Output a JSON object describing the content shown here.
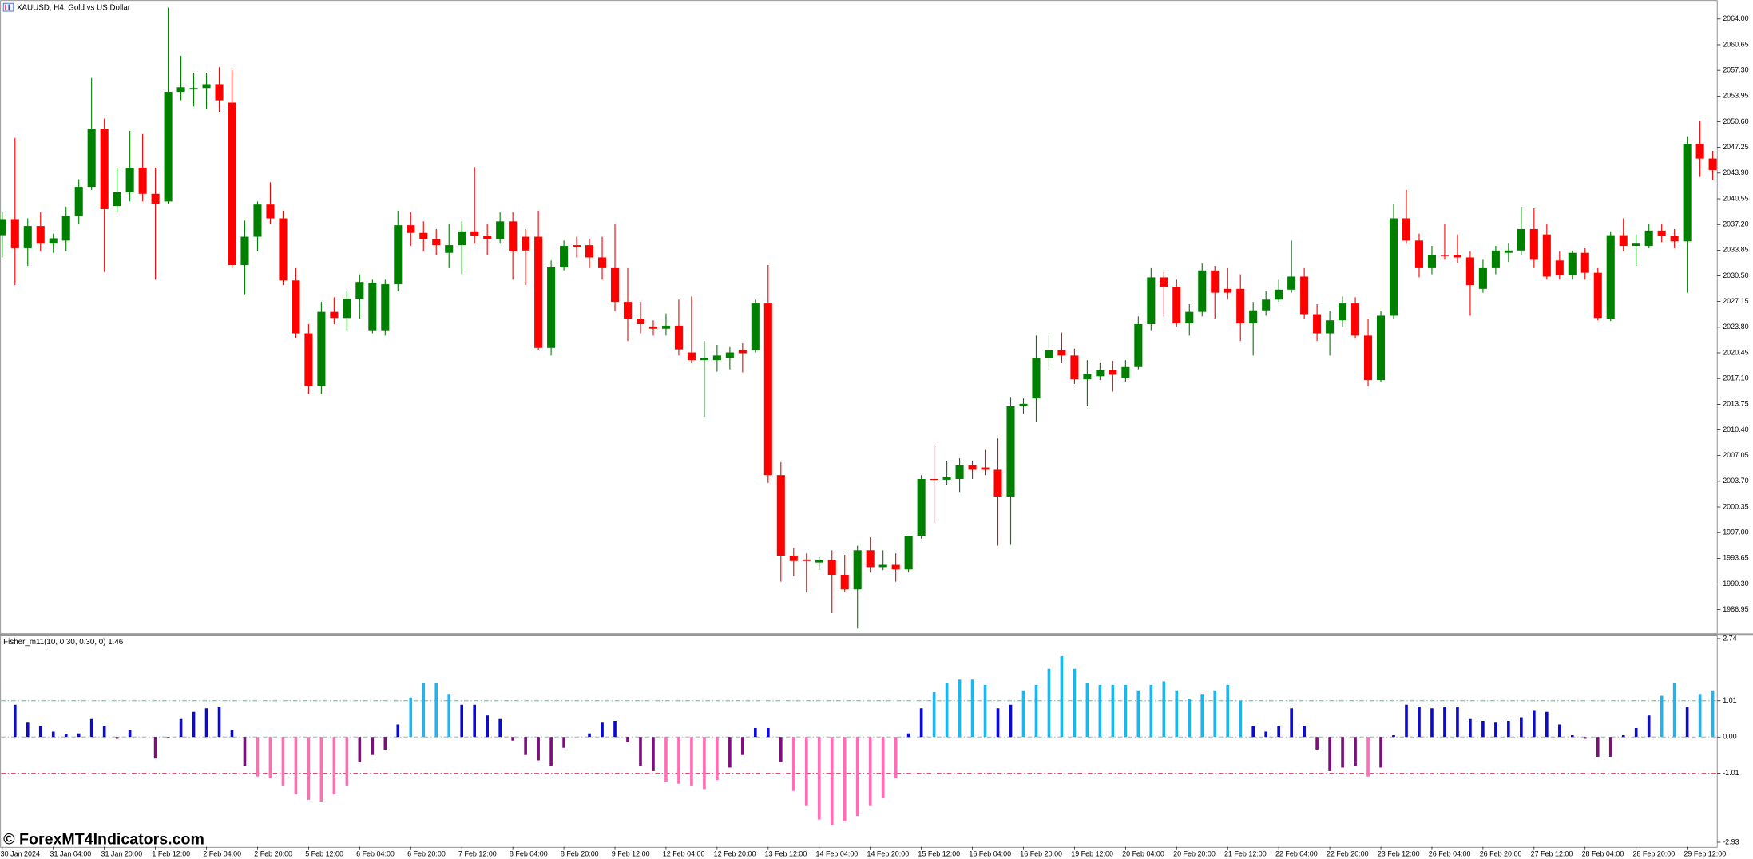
{
  "watermark": "© ForexMT4Indicators.com",
  "chart_data": [
    {
      "type": "candlestick",
      "title": "XAUUSD, H4:  Gold vs US Dollar",
      "categories": [
        "30 Jan 2024",
        null,
        null,
        null,
        "31 Jan 04:00",
        null,
        null,
        null,
        "31 Jan 20:00",
        null,
        null,
        null,
        "1 Feb 12:00",
        null,
        null,
        null,
        "2 Feb 04:00",
        null,
        null,
        null,
        "2 Feb 20:00",
        null,
        null,
        null,
        "5 Feb 12:00",
        null,
        null,
        null,
        "6 Feb 04:00",
        null,
        null,
        null,
        "6 Feb 20:00",
        null,
        null,
        null,
        "7 Feb 12:00",
        null,
        null,
        null,
        "8 Feb 04:00",
        null,
        null,
        null,
        "8 Feb 20:00",
        null,
        null,
        null,
        "9 Feb 12:00",
        null,
        null,
        null,
        "12 Feb 04:00",
        null,
        null,
        null,
        "12 Feb 20:00",
        null,
        null,
        null,
        "13 Feb 12:00",
        null,
        null,
        null,
        "14 Feb 04:00",
        null,
        null,
        null,
        "14 Feb 20:00",
        null,
        null,
        null,
        "15 Feb 12:00",
        null,
        null,
        null,
        "16 Feb 04:00",
        null,
        null,
        null,
        "16 Feb 20:00",
        null,
        null,
        null,
        "19 Feb 12:00",
        null,
        null,
        null,
        "20 Feb 04:00",
        null,
        null,
        null,
        "20 Feb 20:00",
        null,
        null,
        null,
        "21 Feb 12:00",
        null,
        null,
        null,
        "22 Feb 04:00",
        null,
        null,
        null,
        "22 Feb 20:00",
        null,
        null,
        null,
        "23 Feb 12:00",
        null,
        null,
        null,
        "26 Feb 04:00",
        null,
        null,
        null,
        "26 Feb 20:00",
        null,
        null,
        null,
        "27 Feb 12:00",
        null,
        null,
        null,
        "28 Feb 04:00",
        null,
        null,
        null,
        "28 Feb 20:00",
        null,
        null,
        null,
        "29 Feb 12:00",
        null,
        null
      ],
      "open": [
        2035.8,
        2037.9,
        2034.1,
        2037.0,
        2034.7,
        2035.1,
        2038.3,
        2042.1,
        2049.7,
        2039.6,
        2041.4,
        2044.6,
        2041.2,
        2040.2,
        2054.5,
        2054.8,
        2055.0,
        2055.5,
        2053.1,
        2031.9,
        2035.6,
        2039.8,
        2038.0,
        2029.9,
        2023.0,
        2016.1,
        2025.8,
        2025.0,
        2027.5,
        2023.4,
        2023.4,
        2029.4,
        2037.1,
        2036.1,
        2035.3,
        2033.5,
        2034.5,
        2036.3,
        2035.7,
        2035.3,
        2037.6,
        2035.6,
        2035.6,
        2021.1,
        2031.6,
        2034.5,
        2034.5,
        2032.9,
        2031.5,
        2027.1,
        2024.9,
        2023.9,
        2023.6,
        2024.0,
        2020.5,
        2019.5,
        2019.5,
        2019.8,
        2020.8,
        2020.8,
        2026.9,
        2004.5,
        1994.0,
        1993.5,
        1993.1,
        1993.4,
        1991.5,
        1989.6,
        1994.7,
        1992.5,
        1992.8,
        1992.2,
        1996.6,
        2004.0,
        2003.9,
        2004.0,
        2005.8,
        2005.5,
        2005.2,
        2001.7,
        2013.5,
        2014.5,
        2019.8,
        2020.8,
        2020.1,
        2017.0,
        2017.4,
        2018.2,
        2017.2,
        2018.6,
        2024.2,
        2030.3,
        2029.1,
        2024.3,
        2025.8,
        2031.2,
        2028.8,
        2028.8,
        2024.3,
        2026.0,
        2027.4,
        2028.7,
        2030.4,
        2025.5,
        2023.0,
        2024.7,
        2026.9,
        2022.7,
        2016.9,
        2025.3,
        2038.0,
        2035.1,
        2031.5,
        2033.2,
        2033.2,
        2032.9,
        2028.8,
        2031.5,
        2033.5,
        2033.8,
        2036.6,
        2035.9,
        2032.5,
        2030.6,
        2033.5,
        2030.9,
        2024.9,
        2035.8,
        2034.4,
        2034.4,
        2036.4,
        2035.7,
        2035.0,
        2047.7,
        2045.8
      ],
      "high": [
        2038.8,
        2048.5,
        2038.0,
        2038.8,
        2036.0,
        2039.5,
        2043.1,
        2056.3,
        2051.0,
        2044.6,
        2049.4,
        2049.0,
        2044.6,
        2065.5,
        2059.2,
        2057.0,
        2057.0,
        2057.7,
        2057.4,
        2037.7,
        2040.2,
        2042.7,
        2039.0,
        2031.5,
        2024.2,
        2027.1,
        2027.7,
        2028.5,
        2030.7,
        2030.0,
        2030.0,
        2039.0,
        2038.8,
        2037.6,
        2036.6,
        2037.3,
        2037.6,
        2044.7,
        2037.3,
        2038.8,
        2038.8,
        2036.6,
        2039.0,
        2032.5,
        2035.1,
        2035.6,
        2035.3,
        2035.6,
        2037.3,
        2031.5,
        2027.1,
        2024.7,
        2025.6,
        2027.4,
        2027.8,
        2022.0,
        2021.5,
        2021.2,
        2021.7,
        2027.4,
        2031.9,
        2006.2,
        1995.0,
        1994.3,
        1993.8,
        1994.7,
        1994.1,
        1995.3,
        1996.4,
        1994.7,
        1994.3,
        1996.6,
        2004.5,
        2008.5,
        2006.4,
        2006.7,
        2006.4,
        2007.8,
        2009.3,
        2014.7,
        2014.5,
        2022.7,
        2022.7,
        2023.1,
        2021.0,
        2019.5,
        2019.1,
        2019.4,
        2019.5,
        2025.2,
        2031.5,
        2031.0,
        2030.0,
        2026.8,
        2032.1,
        2031.8,
        2031.5,
        2030.7,
        2027.1,
        2028.5,
        2030.0,
        2035.1,
        2031.5,
        2026.8,
        2025.9,
        2027.8,
        2027.7,
        2024.9,
        2025.9,
        2039.9,
        2041.7,
        2036.0,
        2034.4,
        2037.3,
        2035.9,
        2033.7,
        2032.6,
        2034.4,
        2034.7,
        2039.5,
        2039.3,
        2037.3,
        2033.7,
        2033.8,
        2034.1,
        2031.5,
        2036.3,
        2038.0,
        2035.9,
        2037.3,
        2037.3,
        2036.6,
        2048.7,
        2050.7,
        2046.8
      ],
      "low": [
        2032.9,
        2029.3,
        2031.8,
        2033.7,
        2033.5,
        2033.7,
        2037.3,
        2041.7,
        2031.0,
        2038.8,
        2040.2,
        2040.2,
        2030.0,
        2039.9,
        2053.4,
        2052.6,
        2052.3,
        2051.9,
        2031.5,
        2028.1,
        2033.7,
        2037.3,
        2029.3,
        2022.4,
        2015.1,
        2015.1,
        2024.2,
        2023.4,
        2024.9,
        2023.0,
        2022.7,
        2028.5,
        2034.4,
        2033.7,
        2033.2,
        2031.5,
        2030.7,
        2034.7,
        2033.2,
        2034.7,
        2030.0,
        2029.3,
        2020.8,
        2020.1,
        2031.2,
        2032.9,
        2031.5,
        2030.0,
        2025.9,
        2022.0,
        2023.0,
        2022.7,
        2022.7,
        2020.1,
        2019.1,
        2012.1,
        2018.0,
        2018.3,
        2017.9,
        2020.5,
        2003.5,
        1990.6,
        1991.3,
        1989.2,
        1992.1,
        1986.5,
        1989.2,
        1984.5,
        1991.8,
        1992.1,
        1990.6,
        1991.8,
        1996.2,
        1998.2,
        2003.2,
        2002.3,
        2004.0,
        2004.5,
        1995.3,
        1995.4,
        2012.5,
        2011.5,
        2018.3,
        2019.1,
        2016.4,
        2013.5,
        2016.9,
        2015.4,
        2016.7,
        2018.3,
        2023.4,
        2025.2,
        2023.9,
        2022.7,
        2025.2,
        2024.9,
        2027.4,
        2022.0,
        2020.1,
        2025.3,
        2027.1,
        2028.3,
        2024.9,
        2022.0,
        2020.1,
        2023.9,
        2022.3,
        2016.1,
        2016.6,
        2024.9,
        2034.7,
        2030.3,
        2030.7,
        2032.6,
        2032.2,
        2025.3,
        2028.3,
        2030.7,
        2032.3,
        2033.2,
        2031.5,
        2030.0,
        2030.0,
        2030.0,
        2030.0,
        2024.7,
        2024.6,
        2033.7,
        2031.8,
        2034.1,
        2034.9,
        2034.1,
        2028.3,
        2043.4,
        2043.0
      ],
      "close": [
        2037.9,
        2034.1,
        2037.0,
        2034.7,
        2035.4,
        2038.3,
        2042.1,
        2049.7,
        2039.2,
        2041.4,
        2044.6,
        2041.2,
        2039.9,
        2054.5,
        2055.1,
        2055.0,
        2055.5,
        2053.4,
        2031.9,
        2035.6,
        2039.8,
        2038.0,
        2029.9,
        2023.0,
        2016.1,
        2025.8,
        2025.0,
        2027.5,
        2029.7,
        2029.6,
        2029.4,
        2037.1,
        2036.1,
        2035.3,
        2034.5,
        2034.5,
        2036.3,
        2035.7,
        2035.3,
        2037.6,
        2033.7,
        2033.8,
        2021.1,
        2031.6,
        2034.4,
        2034.2,
        2032.9,
        2031.5,
        2027.1,
        2024.9,
        2024.2,
        2023.6,
        2024.0,
        2020.9,
        2019.5,
        2019.8,
        2020.1,
        2020.5,
        2020.4,
        2026.9,
        2004.5,
        1994.0,
        1993.3,
        1993.3,
        1993.4,
        1991.5,
        1989.6,
        1994.7,
        1992.5,
        1992.8,
        1992.2,
        1996.6,
        2004.0,
        2003.9,
        2004.3,
        2005.8,
        2005.2,
        2005.2,
        2001.7,
        2013.5,
        2013.8,
        2019.8,
        2020.8,
        2020.1,
        2017.0,
        2017.7,
        2018.2,
        2017.6,
        2018.6,
        2024.2,
        2030.3,
        2029.1,
        2024.3,
        2025.8,
        2031.2,
        2028.3,
        2028.3,
        2024.3,
        2026.0,
        2027.4,
        2028.7,
        2030.4,
        2025.5,
        2023.0,
        2024.7,
        2026.9,
        2022.7,
        2016.9,
        2025.3,
        2038.0,
        2035.1,
        2031.5,
        2033.2,
        2033.1,
        2032.9,
        2029.3,
        2031.5,
        2033.8,
        2033.8,
        2036.6,
        2032.6,
        2030.4,
        2030.6,
        2033.5,
        2030.9,
        2025.0,
        2035.8,
        2034.4,
        2034.7,
        2036.4,
        2035.7,
        2035.0,
        2047.7,
        2045.8,
        2044.3
      ],
      "up_color": "#008000",
      "down_color": "#ff0000",
      "ylim": [
        1983.9,
        2066.48
      ],
      "yticks": [
        {
          "value": 2064,
          "label": "2064.00"
        },
        2060.65,
        {
          "value": 2057.3,
          "label": "2057.30"
        },
        2053.95,
        {
          "value": 2050.6,
          "label": "2050.60"
        },
        2047.25,
        {
          "value": 2043.9,
          "label": "2043.90"
        },
        2040.55,
        {
          "value": 2037.2,
          "label": "2037.20"
        },
        2033.85,
        {
          "value": 2030.5,
          "label": "2030.50"
        },
        2027.15,
        {
          "value": 2023.8,
          "label": "2023.80"
        },
        2020.45,
        {
          "value": 2017.1,
          "label": "2017.10"
        },
        2013.75,
        {
          "value": 2010.4,
          "label": "2010.40"
        },
        2007.05,
        {
          "value": 2003.7,
          "label": "2003.70"
        },
        2000.35,
        {
          "value": 1997,
          "label": "1997.00"
        },
        1993.65,
        {
          "value": 1990.3,
          "label": "1990.30"
        },
        1986.95
      ]
    },
    {
      "type": "bar",
      "title": "Fisher_m11(10, 0.30, 0.30, 0) 1.46",
      "values": [
        null,
        0.9,
        0.4,
        0.3,
        0.15,
        0.08,
        0.1,
        0.5,
        0.3,
        -0.05,
        0.2,
        0,
        -0.6,
        -0.02,
        0.5,
        0.7,
        0.8,
        0.85,
        0.2,
        -0.8,
        -1.1,
        -1.15,
        -1.35,
        -1.6,
        -1.75,
        -1.8,
        -1.6,
        -1.35,
        -0.7,
        -0.5,
        -0.35,
        0.35,
        1.1,
        1.5,
        1.5,
        1.2,
        0.9,
        0.9,
        0.6,
        0.5,
        -0.1,
        -0.5,
        -0.65,
        -0.8,
        -0.3,
        0,
        0.1,
        0.4,
        0.45,
        -0.15,
        -0.8,
        -0.95,
        -1.25,
        -1.3,
        -1.35,
        -1.45,
        -1.2,
        -0.85,
        -0.5,
        0.25,
        0.25,
        -0.7,
        -1.5,
        -1.9,
        -2.3,
        -2.45,
        -2.35,
        -2.2,
        -1.9,
        -1.7,
        -1.15,
        0.1,
        0.8,
        1.25,
        1.5,
        1.6,
        1.6,
        1.45,
        0.8,
        0.9,
        1.3,
        1.45,
        1.9,
        2.25,
        1.9,
        1.5,
        1.45,
        1.45,
        1.45,
        1.3,
        1.45,
        1.55,
        1.3,
        1.05,
        1.2,
        1.3,
        1.45,
        1.02,
        0.3,
        0.15,
        0.3,
        0.8,
        0.3,
        -0.35,
        -0.95,
        -0.85,
        -0.8,
        -1.1,
        -0.85,
        0.05,
        0.9,
        0.85,
        0.8,
        0.85,
        0.85,
        0.5,
        0.45,
        0.4,
        0.45,
        0.55,
        0.75,
        0.7,
        0.35,
        0.05,
        -0.05,
        -0.55,
        -0.55,
        0.05,
        0.25,
        0.6,
        1.15,
        1.5,
        0.85,
        1.2,
        1.3
      ],
      "colors": [
        "#1eb4f0",
        "#0a0ad2",
        "#7b0f7b",
        "#ff6eb4"
      ],
      "levels": [
        {
          "value": 1.01,
          "color": "#3cb371"
        },
        {
          "value": 0,
          "color": "#8fa3a3"
        },
        {
          "value": -1.01,
          "color": "#dc143c"
        }
      ],
      "ylim": [
        -2.93,
        2.74
      ],
      "yticks": [
        2.74,
        1.01,
        {
          "value": 0,
          "label": "0.00"
        },
        -1.01,
        -2.93
      ]
    }
  ]
}
